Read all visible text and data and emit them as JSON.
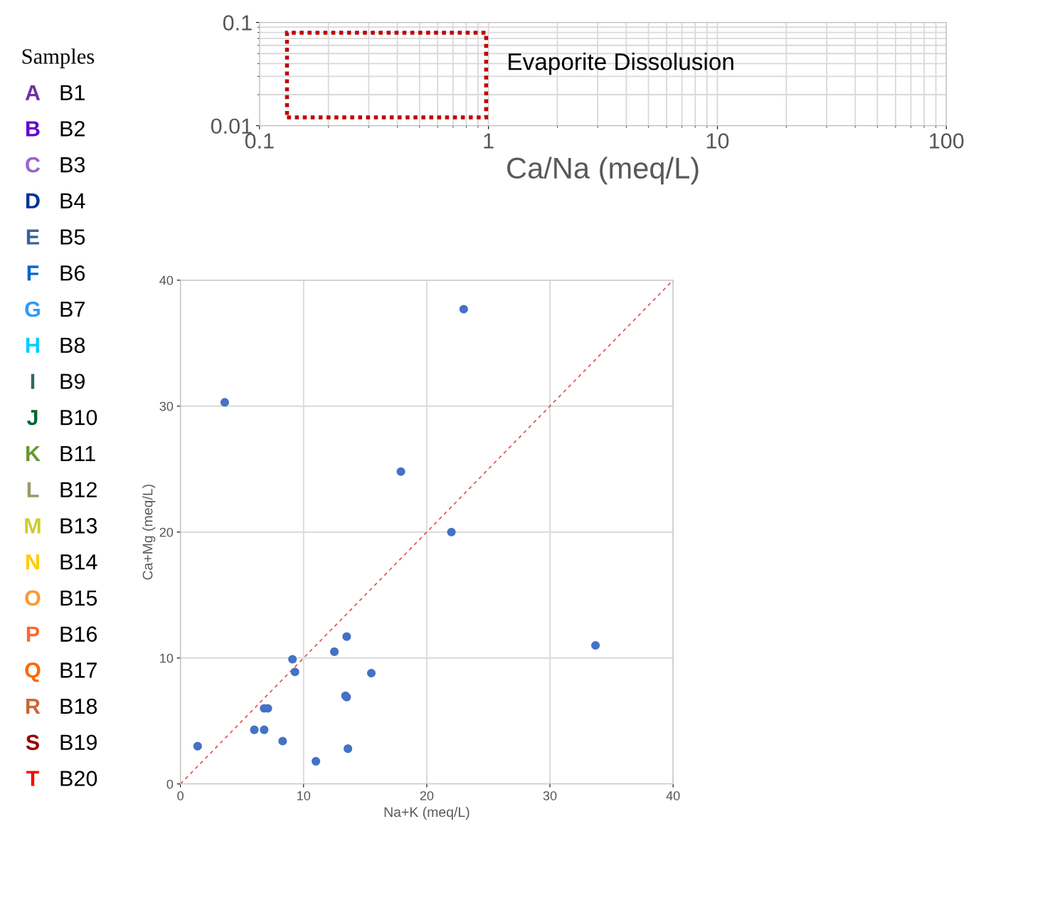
{
  "chart_data": [
    {
      "type": "other",
      "title": "Samples",
      "annotations": [
        "A",
        "B1",
        "B",
        "B2",
        "C",
        "B3",
        "D",
        "B4",
        "E",
        "B5",
        "F",
        "B6",
        "G",
        "B7",
        "H",
        "B8",
        "I",
        "B9",
        "J",
        "B10",
        "K",
        "B11",
        "L",
        "B12",
        "M",
        "B13",
        "N",
        "B14",
        "O",
        "B15",
        "P",
        "B16",
        "Q",
        "B17",
        "R",
        "B18",
        "S",
        "B19",
        "T",
        "B20"
      ],
      "colors": [
        "#7030a0",
        "#6600cc",
        "#9966cc",
        "#003399",
        "#336699",
        "#0066cc",
        "#3399ff",
        "#00ccff",
        "#336666",
        "#006633",
        "#669933",
        "#999966",
        "#cccc33",
        "#ffcc00",
        "#ff9933",
        "#ff6633",
        "#ff6600",
        "#cc6633",
        "#990000",
        "#ff0000"
      ]
    },
    {
      "type": "scatter",
      "xlabel": "Ca/Na (meq/L)",
      "log": "xy",
      "xlim": [
        0.1,
        100
      ],
      "xticks": [
        0.1,
        1,
        10,
        100
      ],
      "ylim": [
        0.01,
        0.1
      ],
      "yticks": [
        0.01,
        0.1
      ],
      "grid": true,
      "annotations": [
        "Evaporite Dissolusion"
      ]
    },
    {
      "type": "scatter",
      "xlabel": "Na+K (meq/L)",
      "ylabel": "Ca+Mg (meq/L)",
      "xlim": [
        0,
        40
      ],
      "xticks": [
        0,
        10,
        20,
        30,
        40
      ],
      "ylim": [
        0,
        40
      ],
      "yticks": [
        0,
        10,
        20,
        30,
        40
      ],
      "grid": true,
      "series": [
        {
          "type": "scatter",
          "marker": "circle",
          "color": "#4472c4",
          "x": [
            23.0,
            3.6,
            17.9,
            22.0,
            33.7,
            13.5,
            12.5,
            9.1,
            9.3,
            15.5,
            13.4,
            13.5,
            6.8,
            7.1,
            6.0,
            6.8,
            8.3,
            1.4,
            13.6,
            11.0
          ],
          "values": [
            37.7,
            30.3,
            24.8,
            20.0,
            11.0,
            11.7,
            10.5,
            9.9,
            8.9,
            8.8,
            7.0,
            6.9,
            6.0,
            6.0,
            4.3,
            4.3,
            3.4,
            3.0,
            2.8,
            1.8
          ]
        },
        {
          "type": "line",
          "marker": "none",
          "color": "#e05050",
          "line_style": "dashed",
          "x": [
            0,
            40
          ],
          "values": [
            0,
            40
          ]
        }
      ]
    }
  ]
}
